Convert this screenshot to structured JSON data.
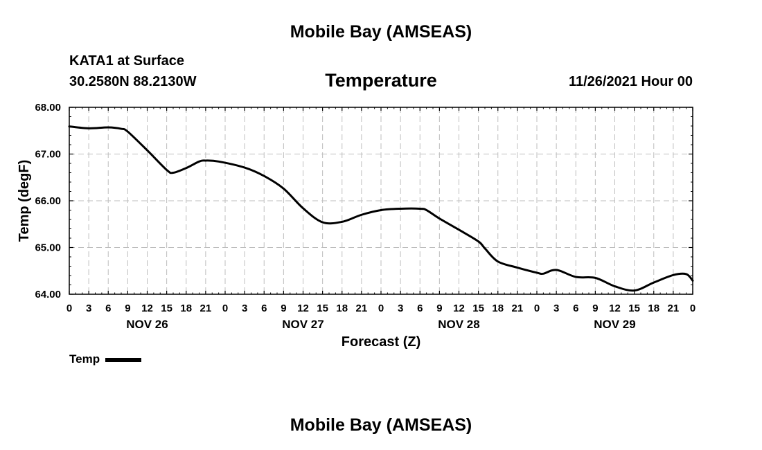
{
  "header": {
    "main_title": "Mobile Bay (AMSEAS)",
    "station_name": "KATA1 at Surface",
    "station_coords": "30.2580N  88.2130W",
    "chart_title": "Temperature",
    "run_time": "11/26/2021 Hour 00"
  },
  "footer": {
    "title": "Mobile Bay (AMSEAS)"
  },
  "legend": {
    "label": "Temp",
    "color": "#000000"
  },
  "chart_data": {
    "type": "line",
    "title": "Temperature",
    "xlabel": "Forecast (Z)",
    "ylabel": "Temp (degF)",
    "ylim": [
      64.0,
      68.0
    ],
    "y_ticks": [
      "64.00",
      "65.00",
      "66.00",
      "67.00",
      "68.00"
    ],
    "x_range_hours": [
      0,
      96
    ],
    "x_tick_labels": [
      "0",
      "3",
      "6",
      "9",
      "12",
      "15",
      "18",
      "21",
      "0",
      "3",
      "6",
      "9",
      "12",
      "15",
      "18",
      "21",
      "0",
      "3",
      "6",
      "9",
      "12",
      "15",
      "18",
      "21",
      "0",
      "3",
      "6",
      "9",
      "12",
      "15",
      "18",
      "21",
      "0"
    ],
    "day_labels": [
      {
        "label": "NOV 26",
        "hour": 12
      },
      {
        "label": "NOV 27",
        "hour": 36
      },
      {
        "label": "NOV 28",
        "hour": 60
      },
      {
        "label": "NOV 29",
        "hour": 84
      }
    ],
    "grid": true,
    "line_color": "#000000",
    "series": [
      {
        "name": "Temp",
        "x": [
          0,
          3,
          6,
          8,
          9,
          12,
          15,
          16,
          18,
          20,
          21,
          23,
          27,
          30,
          33,
          36,
          39,
          42,
          45,
          48,
          51,
          54,
          55,
          57,
          60,
          63,
          64,
          66,
          69,
          72,
          73,
          75,
          78,
          81,
          84,
          87,
          90,
          93,
          95,
          96
        ],
        "values": [
          67.59,
          67.55,
          67.57,
          67.54,
          67.48,
          67.08,
          66.66,
          66.6,
          66.7,
          66.84,
          66.86,
          66.84,
          66.71,
          66.53,
          66.26,
          65.84,
          65.54,
          65.55,
          65.7,
          65.8,
          65.83,
          65.83,
          65.8,
          65.62,
          65.38,
          65.13,
          64.98,
          64.7,
          64.57,
          64.46,
          64.44,
          64.52,
          64.37,
          64.35,
          64.17,
          64.08,
          64.25,
          64.41,
          64.43,
          64.29
        ]
      }
    ]
  }
}
